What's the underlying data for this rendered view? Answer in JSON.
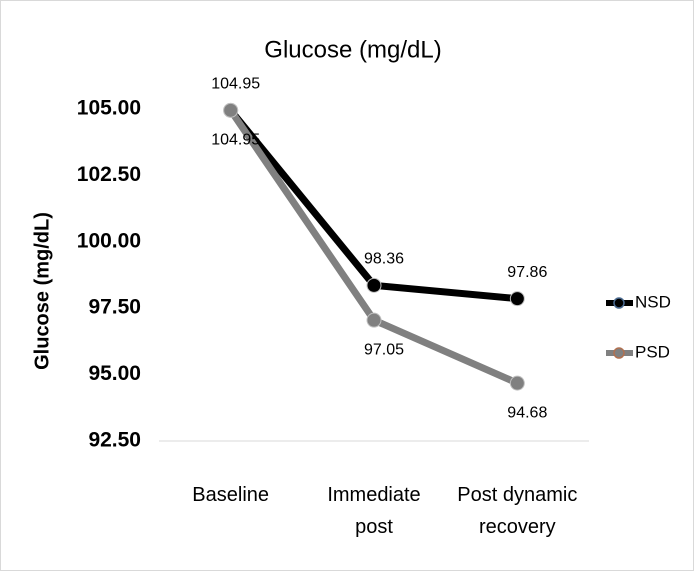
{
  "chart_data": {
    "type": "line",
    "title": "Glucose (mg/dL)",
    "y_label": "Glucose (mg/dL)",
    "categories": [
      "Baseline",
      "Immediate post",
      "Post dynamic recovery"
    ],
    "series": [
      {
        "name": "NSD",
        "color": "#000000",
        "values": [
          104.95,
          98.36,
          97.86
        ]
      },
      {
        "name": "PSD",
        "color": "#808080",
        "values": [
          104.95,
          97.05,
          94.68
        ]
      }
    ],
    "ylim": [
      92.5,
      105
    ],
    "yticks": [
      {
        "value": 92.5,
        "label": "92.50"
      },
      {
        "value": 95,
        "label": "95.00"
      },
      {
        "value": 97.5,
        "label": "97.50"
      },
      {
        "value": 100,
        "label": "100.00"
      },
      {
        "value": 102.5,
        "label": "102.50"
      },
      {
        "value": 105,
        "label": "105.00"
      }
    ],
    "grid": false,
    "legend": "right"
  }
}
